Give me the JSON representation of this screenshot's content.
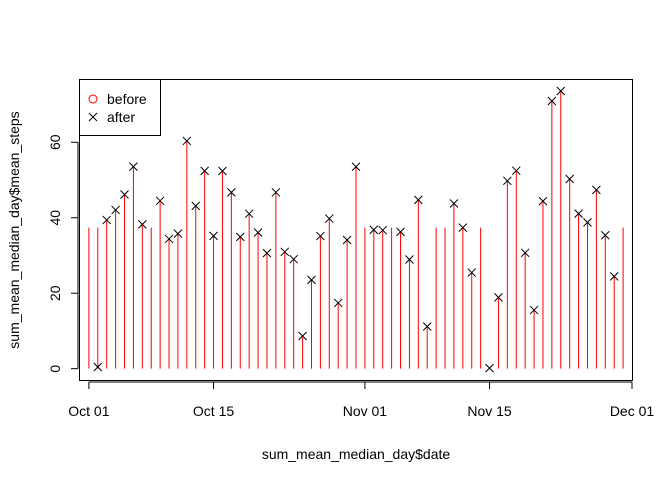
{
  "chart_data": {
    "type": "scatter",
    "title": "",
    "xlabel": "sum_mean_median_day$date",
    "ylabel": "sum_mean_median_day$mean_steps",
    "x_tick_labels": [
      "Oct 01",
      "Oct 15",
      "Nov 01",
      "Nov 15",
      "Dec 01"
    ],
    "x_tick_dates": [
      "2012-10-01",
      "2012-10-15",
      "2012-11-01",
      "2012-11-15",
      "2012-12-01"
    ],
    "y_tick_labels": [
      "0",
      "20",
      "40",
      "60"
    ],
    "y_ticks": [
      0,
      20,
      40,
      60
    ],
    "xlim": [
      "2012-09-30",
      "2012-12-01"
    ],
    "ylim": [
      -3,
      76.5
    ],
    "legend": {
      "position": "top-left",
      "entries": [
        {
          "label": "before",
          "symbol": "circle",
          "color": "#ff0000"
        },
        {
          "label": "after",
          "symbol": "cross",
          "color": "#000000"
        }
      ]
    },
    "colors": {
      "before_lines": "#ff0000",
      "after_points": "#000000"
    },
    "dates": [
      "2012-10-01",
      "2012-10-02",
      "2012-10-03",
      "2012-10-04",
      "2012-10-05",
      "2012-10-06",
      "2012-10-07",
      "2012-10-08",
      "2012-10-09",
      "2012-10-10",
      "2012-10-11",
      "2012-10-12",
      "2012-10-13",
      "2012-10-14",
      "2012-10-15",
      "2012-10-16",
      "2012-10-17",
      "2012-10-18",
      "2012-10-19",
      "2012-10-20",
      "2012-10-21",
      "2012-10-22",
      "2012-10-23",
      "2012-10-24",
      "2012-10-25",
      "2012-10-26",
      "2012-10-27",
      "2012-10-28",
      "2012-10-29",
      "2012-10-30",
      "2012-10-31",
      "2012-11-01",
      "2012-11-02",
      "2012-11-03",
      "2012-11-04",
      "2012-11-05",
      "2012-11-06",
      "2012-11-07",
      "2012-11-08",
      "2012-11-09",
      "2012-11-10",
      "2012-11-11",
      "2012-11-12",
      "2012-11-13",
      "2012-11-14",
      "2012-11-15",
      "2012-11-16",
      "2012-11-17",
      "2012-11-18",
      "2012-11-19",
      "2012-11-20",
      "2012-11-21",
      "2012-11-22",
      "2012-11-23",
      "2012-11-24",
      "2012-11-25",
      "2012-11-26",
      "2012-11-27",
      "2012-11-28",
      "2012-11-29",
      "2012-11-30"
    ],
    "series": [
      {
        "name": "before",
        "style": "vertical-lines",
        "values": [
          37.38,
          37.38,
          39.42,
          42.07,
          46.16,
          53.54,
          38.25,
          37.38,
          44.48,
          34.38,
          35.78,
          60.35,
          43.15,
          52.42,
          35.2,
          52.38,
          46.71,
          34.92,
          41.07,
          36.09,
          30.63,
          46.74,
          30.97,
          29.01,
          8.65,
          23.53,
          35.14,
          39.78,
          17.42,
          34.09,
          53.52,
          37.38,
          36.81,
          36.7,
          37.38,
          36.25,
          28.94,
          44.73,
          11.18,
          37.38,
          37.38,
          43.78,
          37.38,
          25.47,
          37.38,
          0.14,
          18.89,
          49.79,
          52.47,
          30.7,
          15.53,
          44.4,
          70.93,
          73.59,
          50.27,
          41.09,
          38.76,
          47.38,
          35.36,
          24.47,
          37.38
        ]
      },
      {
        "name": "after",
        "style": "cross",
        "values": [
          null,
          0.44,
          39.42,
          42.07,
          46.16,
          53.54,
          38.25,
          null,
          44.48,
          34.38,
          35.78,
          60.35,
          43.15,
          52.42,
          35.2,
          52.38,
          46.71,
          34.92,
          41.07,
          36.09,
          30.63,
          46.74,
          30.97,
          29.01,
          8.65,
          23.53,
          35.14,
          39.78,
          17.42,
          34.09,
          53.52,
          null,
          36.81,
          36.7,
          null,
          36.25,
          28.94,
          44.73,
          11.18,
          null,
          null,
          43.78,
          37.38,
          25.47,
          null,
          0.14,
          18.89,
          49.79,
          52.47,
          30.7,
          15.53,
          44.4,
          70.93,
          73.59,
          50.27,
          41.09,
          38.76,
          47.38,
          35.36,
          24.47,
          null
        ]
      }
    ]
  }
}
